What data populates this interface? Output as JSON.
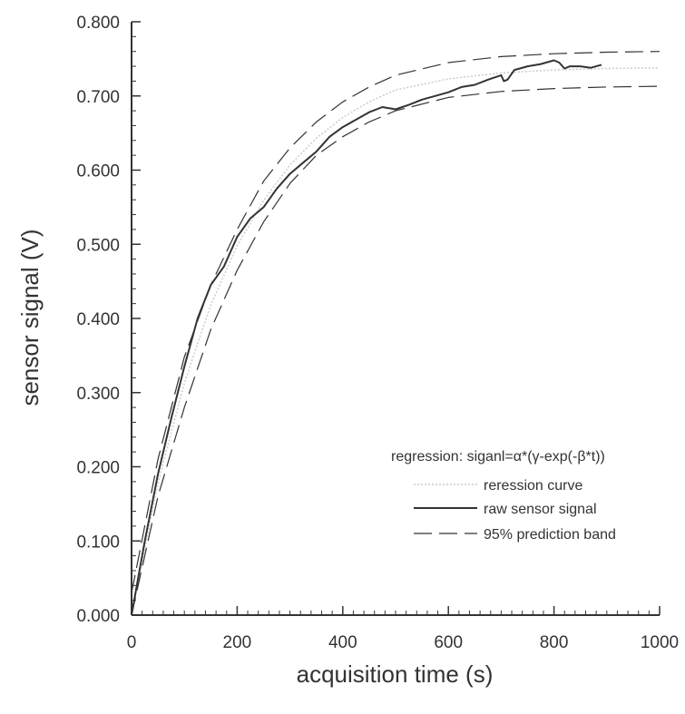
{
  "chart_data": {
    "type": "line",
    "xlabel": "acquisition time (s)",
    "ylabel": "sensor signal (V)",
    "xlim": [
      0,
      1000
    ],
    "ylim": [
      0,
      0.8
    ],
    "xticks": [
      0,
      200,
      400,
      600,
      800,
      1000
    ],
    "xtick_labels": [
      "0",
      "200",
      "400",
      "600",
      "800",
      "1000"
    ],
    "yticks": [
      0,
      0.1,
      0.2,
      0.3,
      0.4,
      0.5,
      0.6,
      0.7,
      0.8
    ],
    "ytick_labels": [
      "0.000",
      "0.100",
      "0.200",
      "0.300",
      "0.400",
      "0.500",
      "0.600",
      "0.700",
      "0.800"
    ],
    "grid": false,
    "legend": {
      "position": "right",
      "title": "regression: siganl=α*(γ-exp(-β*t))",
      "entries": [
        {
          "key": "regression",
          "label": "reression curve",
          "style": "dotted",
          "color": "#cccccc"
        },
        {
          "key": "raw",
          "label": "raw sensor signal",
          "style": "solid",
          "color": "#333333"
        },
        {
          "key": "band",
          "label": "95% prediction band",
          "style": "dashed",
          "color": "#333333"
        }
      ]
    },
    "series": [
      {
        "key": "regression",
        "x": [
          0,
          50,
          100,
          150,
          200,
          250,
          300,
          350,
          400,
          450,
          500,
          600,
          700,
          800,
          900,
          1000
        ],
        "y": [
          0.0,
          0.178,
          0.313,
          0.418,
          0.498,
          0.559,
          0.607,
          0.643,
          0.671,
          0.692,
          0.708,
          0.723,
          0.731,
          0.735,
          0.737,
          0.738
        ]
      },
      {
        "key": "raw",
        "x": [
          0,
          10,
          25,
          50,
          75,
          100,
          125,
          150,
          175,
          200,
          225,
          250,
          275,
          300,
          325,
          350,
          375,
          400,
          425,
          450,
          475,
          500,
          525,
          550,
          575,
          600,
          625,
          650,
          675,
          700,
          705,
          712,
          725,
          750,
          775,
          800,
          810,
          820,
          830,
          850,
          870,
          890
        ],
        "y": [
          0.0,
          0.04,
          0.1,
          0.19,
          0.265,
          0.335,
          0.4,
          0.445,
          0.47,
          0.51,
          0.535,
          0.55,
          0.575,
          0.595,
          0.61,
          0.625,
          0.645,
          0.658,
          0.668,
          0.678,
          0.685,
          0.682,
          0.688,
          0.695,
          0.7,
          0.705,
          0.712,
          0.715,
          0.722,
          0.728,
          0.72,
          0.722,
          0.735,
          0.74,
          0.743,
          0.748,
          0.745,
          0.737,
          0.74,
          0.74,
          0.738,
          0.742
        ]
      },
      {
        "key": "band_upper",
        "x": [
          0,
          50,
          100,
          150,
          200,
          250,
          300,
          350,
          400,
          450,
          500,
          600,
          700,
          800,
          900,
          1000
        ],
        "y": [
          0.03,
          0.21,
          0.348,
          0.445,
          0.52,
          0.585,
          0.63,
          0.665,
          0.692,
          0.712,
          0.728,
          0.745,
          0.753,
          0.757,
          0.759,
          0.76
        ]
      },
      {
        "key": "band_lower",
        "x": [
          0,
          50,
          100,
          150,
          200,
          250,
          300,
          350,
          400,
          450,
          500,
          600,
          700,
          800,
          900,
          1000
        ],
        "y": [
          0.0,
          0.16,
          0.28,
          0.385,
          0.465,
          0.53,
          0.582,
          0.62,
          0.645,
          0.665,
          0.68,
          0.698,
          0.706,
          0.71,
          0.712,
          0.713
        ]
      }
    ]
  }
}
